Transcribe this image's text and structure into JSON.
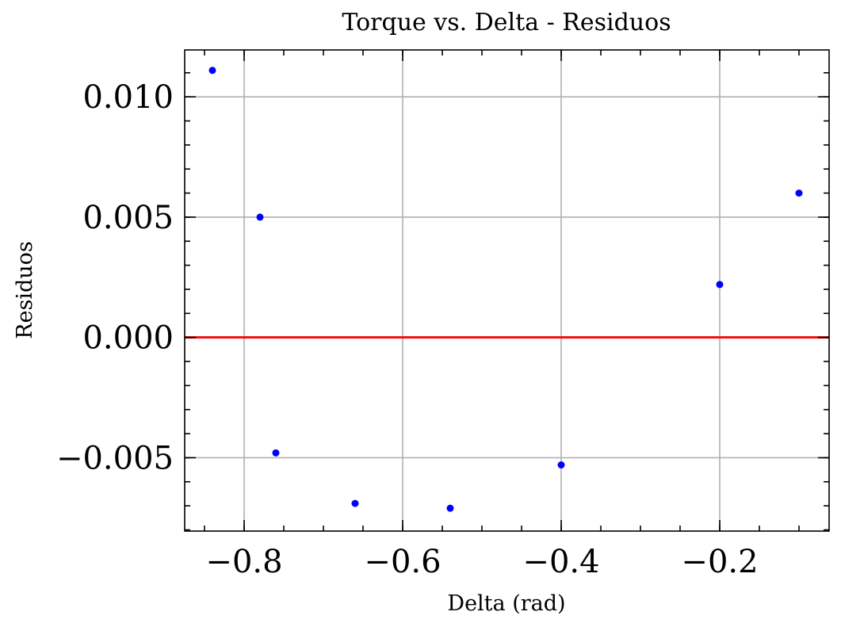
{
  "chart_data": {
    "type": "scatter",
    "title": "Torque vs. Delta - Residuos",
    "xlabel": "Delta (rad)",
    "ylabel": "Residuos",
    "xlim": [
      -0.875,
      -0.062
    ],
    "ylim": [
      -0.00805,
      0.01195
    ],
    "grid": true,
    "x_ticks": [
      -0.8,
      -0.6,
      -0.4,
      -0.2
    ],
    "x_tick_labels": [
      "−0.8",
      "−0.6",
      "−0.4",
      "−0.2"
    ],
    "y_ticks": [
      -0.005,
      0.0,
      0.005,
      0.01
    ],
    "y_tick_labels": [
      "−0.005",
      "0.000",
      "0.005",
      "0.010"
    ],
    "x_minor_step": 0.05,
    "y_minor_step": 0.001,
    "series": [
      {
        "x": [
          -0.84,
          -0.78,
          -0.76,
          -0.66,
          -0.54,
          -0.4,
          -0.2,
          -0.1
        ],
        "y": [
          0.0111,
          0.005,
          -0.0048,
          -0.0069,
          -0.0071,
          -0.0053,
          0.0022,
          0.006
        ],
        "color": "#0000ff"
      }
    ],
    "reference_line": {
      "y": 0.0,
      "color": "#ee1111"
    }
  }
}
